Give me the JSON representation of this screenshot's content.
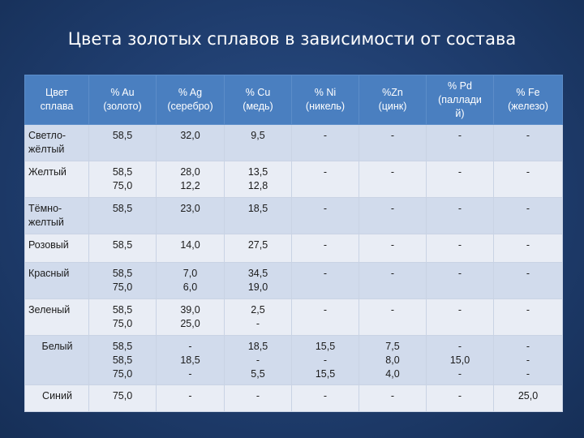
{
  "title": "Цвета золотых сплавов в зависимости от состава",
  "headers": [
    [
      "Цвет",
      "сплава"
    ],
    [
      "% Au",
      "(золото)"
    ],
    [
      "% Ag",
      "(серебро)"
    ],
    [
      "% Cu",
      "(медь)"
    ],
    [
      "% Ni",
      "(никель)"
    ],
    [
      "%Zn",
      "(цинк)"
    ],
    [
      "% Pd",
      "(паллади",
      "й)"
    ],
    [
      "% Fe",
      "(железо)"
    ]
  ],
  "rows": [
    {
      "cells": [
        [
          "Светло-",
          "жёлтый"
        ],
        [
          "58,5"
        ],
        [
          "32,0"
        ],
        [
          "9,5"
        ],
        [
          "-"
        ],
        [
          "-"
        ],
        [
          "-"
        ],
        [
          "-"
        ]
      ]
    },
    {
      "cells": [
        [
          "Желтый"
        ],
        [
          "58,5",
          "75,0"
        ],
        [
          "28,0",
          "12,2"
        ],
        [
          "13,5",
          "12,8"
        ],
        [
          "-"
        ],
        [
          "-"
        ],
        [
          "-"
        ],
        [
          "-"
        ]
      ]
    },
    {
      "cells": [
        [
          "Тёмно-",
          "желтый"
        ],
        [
          "58,5"
        ],
        [
          "23,0"
        ],
        [
          "18,5"
        ],
        [
          "-"
        ],
        [
          "-"
        ],
        [
          "-"
        ],
        [
          "-"
        ]
      ]
    },
    {
      "cells": [
        [
          "Розовый"
        ],
        [
          "58,5"
        ],
        [
          "14,0"
        ],
        [
          "27,5"
        ],
        [
          "-"
        ],
        [
          "-"
        ],
        [
          "-"
        ],
        [
          "-"
        ]
      ]
    },
    {
      "cells": [
        [
          "Красный"
        ],
        [
          "58,5",
          "75,0"
        ],
        [
          "7,0",
          "6,0"
        ],
        [
          "34,5",
          "19,0"
        ],
        [
          "-"
        ],
        [
          "-"
        ],
        [
          "-"
        ],
        [
          "-"
        ]
      ]
    },
    {
      "cells": [
        [
          "Зеленый"
        ],
        [
          "58,5",
          "75,0"
        ],
        [
          "39,0",
          "25,0"
        ],
        [
          "2,5",
          "-"
        ],
        [
          "-"
        ],
        [
          "-"
        ],
        [
          "-"
        ],
        [
          "-"
        ]
      ]
    },
    {
      "cells": [
        [
          "Белый"
        ],
        [
          "58,5",
          "58,5",
          "75,0"
        ],
        [
          "-",
          "18,5",
          "-"
        ],
        [
          "18,5",
          "-",
          "5,5"
        ],
        [
          "15,5",
          "-",
          "15,5"
        ],
        [
          "7,5",
          "8,0",
          "4,0"
        ],
        [
          "-",
          "15,0",
          "-"
        ],
        [
          "-",
          "-",
          "-"
        ]
      ]
    },
    {
      "cells": [
        [
          "Синий"
        ],
        [
          "75,0"
        ],
        [
          "-"
        ],
        [
          "-"
        ],
        [
          "-"
        ],
        [
          "-"
        ],
        [
          "-"
        ],
        [
          "25,0"
        ]
      ]
    }
  ]
}
